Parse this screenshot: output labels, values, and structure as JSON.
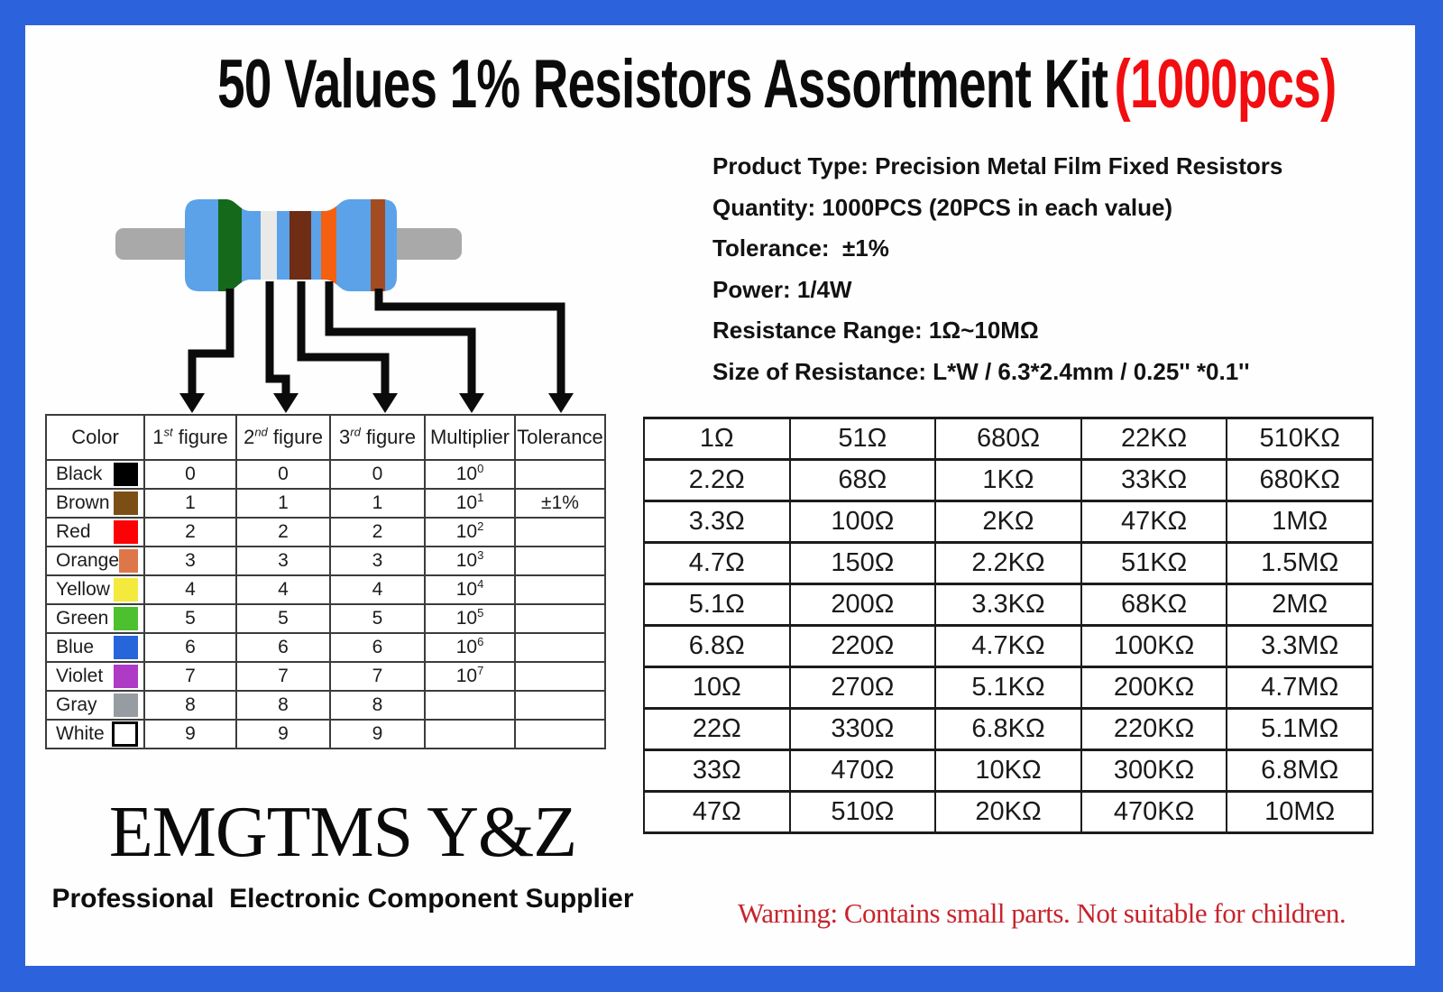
{
  "frame": {
    "border_color": "#2C63DC",
    "background": "#FEFEFE"
  },
  "title": {
    "main": "50 Values 1% Resistors Assortment Kit",
    "count": "(1000pcs)",
    "count_color": "#F10D10"
  },
  "product_details": {
    "lines": [
      "Product Type: Precision Metal Film Fixed Resistors",
      "Quantity: 1000PCS (20PCS in each value)",
      "Tolerance:  ±1%",
      "Power: 1/4W",
      "Resistance Range: 1Ω~10MΩ",
      "Size of Resistance: L*W / 6.3*2.4mm / 0.25'' *0.1''"
    ]
  },
  "resistor_diagram": {
    "body_color": "#5BA2E9",
    "lead_color": "#A9A9A9",
    "arrow_color": "#0B0B0B",
    "bands": [
      {
        "name": "green-band",
        "color": "#14691B"
      },
      {
        "name": "white-band",
        "color": "#E9E9E7"
      },
      {
        "name": "brown-band",
        "color": "#6E2D14"
      },
      {
        "name": "orange-band",
        "color": "#F4600F"
      },
      {
        "name": "brown-tolerance-band",
        "color": "#A34B21"
      }
    ]
  },
  "color_code_table": {
    "multiplier_base": "10",
    "headers": [
      {
        "label": "Color"
      },
      {
        "num": "1",
        "ord": "st",
        "label": "figure"
      },
      {
        "num": "2",
        "ord": "nd",
        "label": "figure"
      },
      {
        "num": "3",
        "ord": "rd",
        "label": "figure"
      },
      {
        "label": "Multiplier"
      },
      {
        "label": "Tolerance"
      }
    ],
    "rows": [
      {
        "name": "Black",
        "hex": "#000000",
        "f1": "0",
        "f2": "0",
        "f3": "0",
        "exp": "0",
        "tol": ""
      },
      {
        "name": "Brown",
        "hex": "#7B4E16",
        "f1": "1",
        "f2": "1",
        "f3": "1",
        "exp": "1",
        "tol": "±1%"
      },
      {
        "name": "Red",
        "hex": "#FB0207",
        "f1": "2",
        "f2": "2",
        "f3": "2",
        "exp": "2",
        "tol": ""
      },
      {
        "name": "Orange",
        "hex": "#DD7749",
        "f1": "3",
        "f2": "3",
        "f3": "3",
        "exp": "3",
        "tol": ""
      },
      {
        "name": "Yellow",
        "hex": "#F4EA3E",
        "f1": "4",
        "f2": "4",
        "f3": "4",
        "exp": "4",
        "tol": ""
      },
      {
        "name": "Green",
        "hex": "#4CC02F",
        "f1": "5",
        "f2": "5",
        "f3": "5",
        "exp": "5",
        "tol": ""
      },
      {
        "name": "Blue",
        "hex": "#2765DA",
        "f1": "6",
        "f2": "6",
        "f3": "6",
        "exp": "6",
        "tol": ""
      },
      {
        "name": "Violet",
        "hex": "#AE3AC6",
        "f1": "7",
        "f2": "7",
        "f3": "7",
        "exp": "7",
        "tol": ""
      },
      {
        "name": "Gray",
        "hex": "#969CA2",
        "f1": "8",
        "f2": "8",
        "f3": "8",
        "exp": "",
        "tol": ""
      },
      {
        "name": "White",
        "hex": "#FFFFFF",
        "f1": "9",
        "f2": "9",
        "f3": "9",
        "exp": "",
        "tol": ""
      }
    ]
  },
  "values_table": {
    "rows": [
      [
        "1Ω",
        "51Ω",
        "680Ω",
        "22KΩ",
        "510KΩ"
      ],
      [
        "2.2Ω",
        "68Ω",
        "1KΩ",
        "33KΩ",
        "680KΩ"
      ],
      [
        "3.3Ω",
        "100Ω",
        "2KΩ",
        "47KΩ",
        "1MΩ"
      ],
      [
        "4.7Ω",
        "150Ω",
        "2.2KΩ",
        "51KΩ",
        "1.5MΩ"
      ],
      [
        "5.1Ω",
        "200Ω",
        "3.3KΩ",
        "68KΩ",
        "2MΩ"
      ],
      [
        "6.8Ω",
        "220Ω",
        "4.7KΩ",
        "100KΩ",
        "3.3MΩ"
      ],
      [
        "10Ω",
        "270Ω",
        "5.1KΩ",
        "200KΩ",
        "4.7MΩ"
      ],
      [
        "22Ω",
        "330Ω",
        "6.8KΩ",
        "220KΩ",
        "5.1MΩ"
      ],
      [
        "33Ω",
        "470Ω",
        "10KΩ",
        "300KΩ",
        "6.8MΩ"
      ],
      [
        "47Ω",
        "510Ω",
        "20KΩ",
        "470KΩ",
        "10MΩ"
      ]
    ]
  },
  "brand": {
    "name": "EMGTMS Y&Z",
    "tagline": "Professional  Electronic Component Supplier"
  },
  "warning": {
    "text": "Warning: Contains small parts. Not suitable for children.",
    "color": "#C8232C"
  }
}
